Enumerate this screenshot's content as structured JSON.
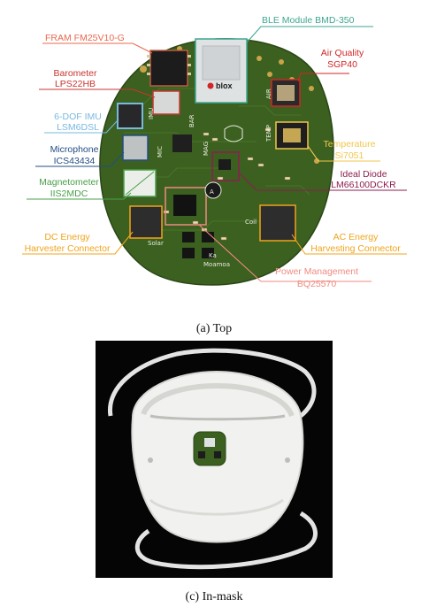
{
  "captions": {
    "top": "(a) Top",
    "mask": "(c) In-mask"
  },
  "labels": [
    {
      "id": "fram",
      "line1": "FRAM FM25V10-G",
      "line2": "",
      "color": "#e8694d"
    },
    {
      "id": "ble",
      "line1": "BLE Module BMD-350",
      "line2": "",
      "color": "#3ea691"
    },
    {
      "id": "baro",
      "line1": "Barometer",
      "line2": "LPS22HB",
      "color": "#c73630"
    },
    {
      "id": "air",
      "line1": "Air Quality",
      "line2": "SGP40",
      "color": "#d22626"
    },
    {
      "id": "imu",
      "line1": "6-DOF IMU",
      "line2": "LSM6DSL",
      "color": "#78b9df"
    },
    {
      "id": "temp",
      "line1": "Temperature",
      "line2": "Si7051",
      "color": "#f2c64c"
    },
    {
      "id": "mic",
      "line1": "Microphone",
      "line2": "ICS43434",
      "color": "#234e83"
    },
    {
      "id": "diode",
      "line1": "Ideal Diode",
      "line2": "LM66100DCKR",
      "color": "#8e1e4f"
    },
    {
      "id": "mag",
      "line1": "Magnetometer",
      "line2": "IIS2MDC",
      "color": "#4aa04a"
    },
    {
      "id": "dcharv",
      "line1": "DC Energy",
      "line2": "Harvester Connector",
      "color": "#f0a41c"
    },
    {
      "id": "acharv",
      "line1": "AC Energy",
      "line2": "Harvesting Connector",
      "color": "#f0a41c"
    },
    {
      "id": "pm",
      "line1": "Power Management",
      "line2": "BQ25570",
      "color": "#f08a80"
    }
  ],
  "board": {
    "blox": "blox",
    "brand1": "Ka",
    "brand2": "Moamoa",
    "silk": [
      "IMU",
      "BAR",
      "MIC",
      "MAG",
      "TEMP",
      "AIR",
      "Coil",
      "Solar",
      "A"
    ]
  }
}
